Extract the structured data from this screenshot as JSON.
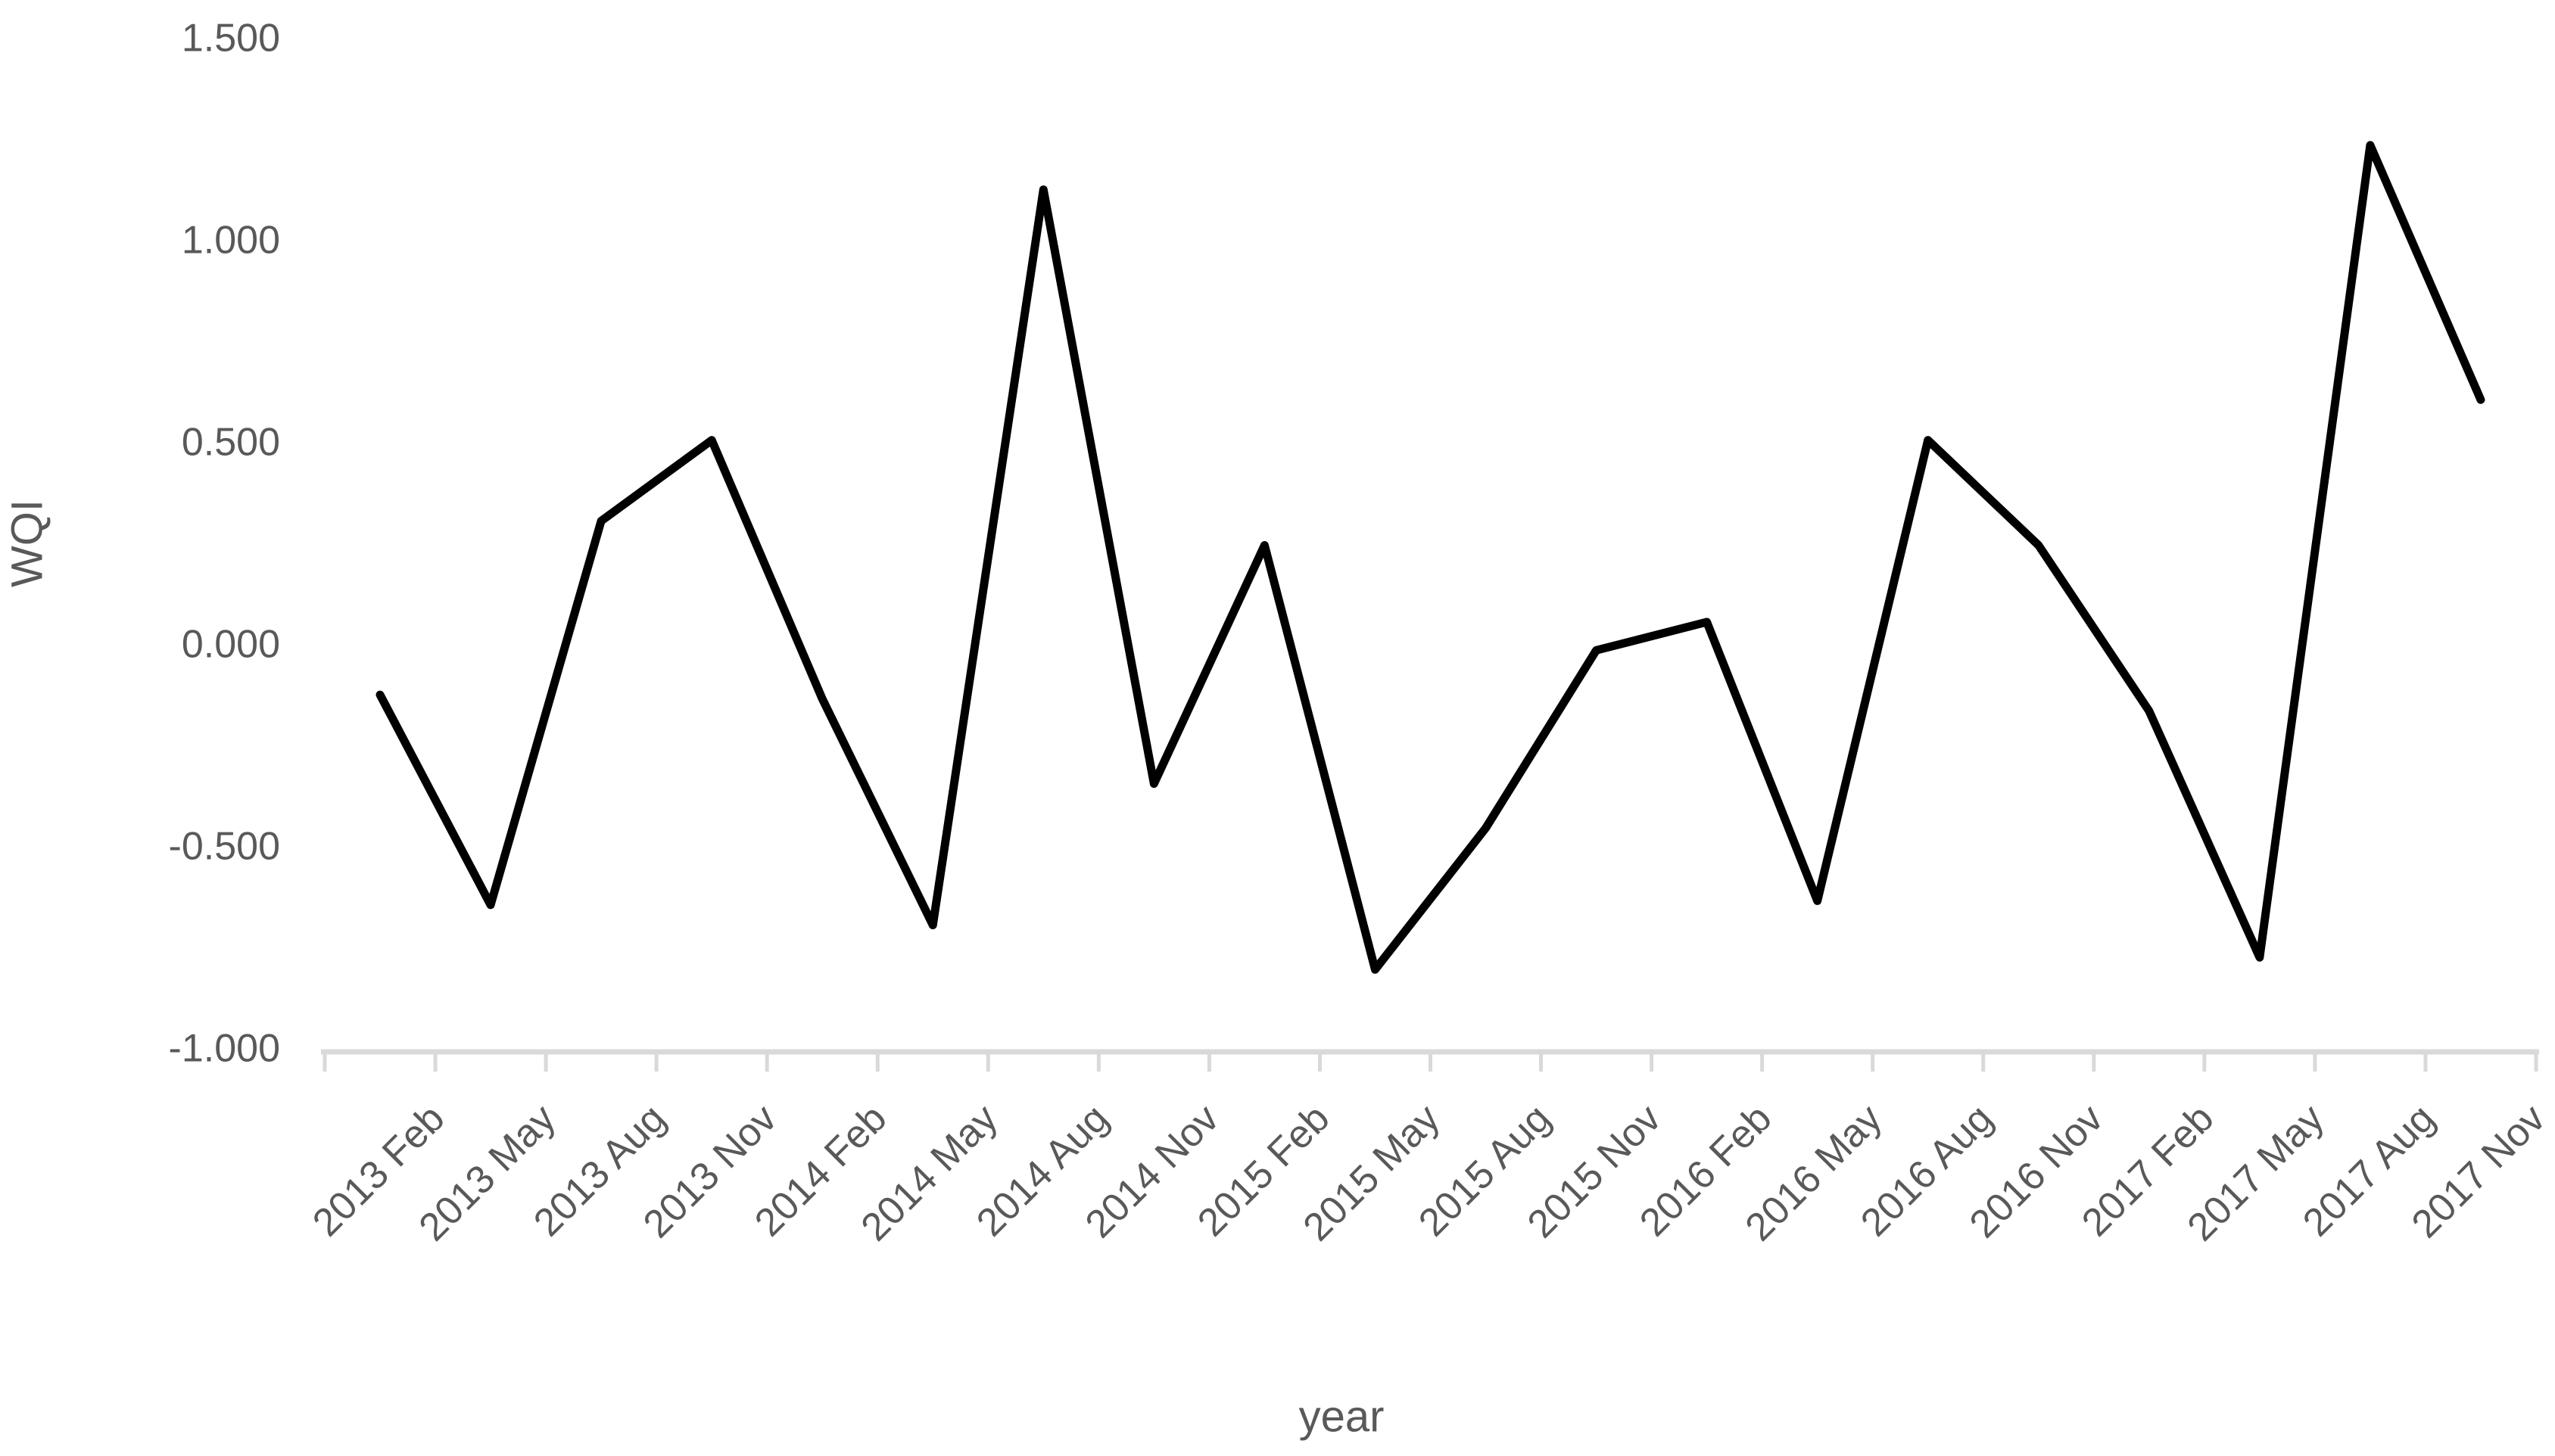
{
  "page": {
    "background": "#ffffff"
  },
  "chart_data": {
    "type": "line",
    "title": "",
    "xlabel": "year",
    "ylabel": "WQI",
    "categories": [
      "2013 Feb",
      "2013 May",
      "2013 Aug",
      "2013 Nov",
      "2014 Feb",
      "2014 May",
      "2014 Aug",
      "2014 Nov",
      "2015 Feb",
      "2015 May",
      "2015 Aug",
      "2015 Nov",
      "2016 Feb",
      "2016 May",
      "2016 Aug",
      "2016 Nov",
      "2017 Feb",
      "2017 May",
      "2017 Aug",
      "2017 Nov"
    ],
    "series": [
      {
        "name": "WQI",
        "values": [
          -0.12,
          -0.64,
          0.31,
          0.51,
          -0.13,
          -0.69,
          1.13,
          -0.34,
          0.25,
          -0.8,
          -0.45,
          -0.01,
          0.06,
          -0.63,
          0.51,
          0.25,
          -0.16,
          -0.77,
          1.24,
          0.61
        ]
      }
    ],
    "values": [
      -0.12,
      -0.64,
      0.31,
      0.51,
      -0.13,
      -0.69,
      1.13,
      -0.34,
      0.25,
      -0.8,
      -0.45,
      -0.01,
      0.06,
      -0.63,
      0.51,
      0.25,
      -0.16,
      -0.77,
      1.24,
      0.61
    ],
    "ylim": [
      -1.0,
      1.5
    ],
    "ytick_step": 0.5,
    "yticks": [
      {
        "value": 1.5,
        "label": "1.500"
      },
      {
        "value": 1.0,
        "label": "1.000"
      },
      {
        "value": 0.5,
        "label": "0.500"
      },
      {
        "value": 0.0,
        "label": "0.000"
      },
      {
        "value": -0.5,
        "label": "-0.500"
      },
      {
        "value": -1.0,
        "label": "-1.000"
      }
    ],
    "grid": "off",
    "legend": "none",
    "line_color": "#000000",
    "axis_color": "#d9d9d9",
    "label_color": "#595959"
  }
}
